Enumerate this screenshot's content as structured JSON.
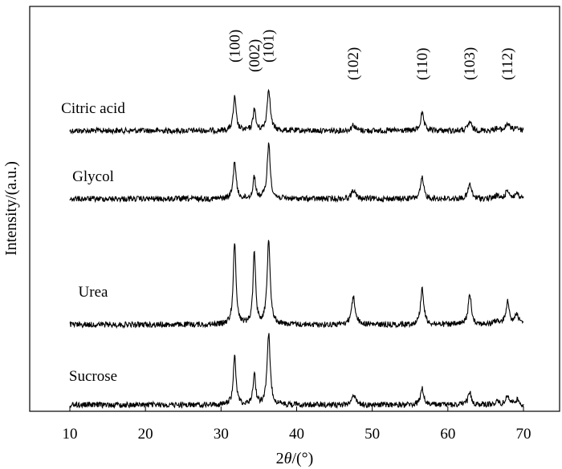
{
  "chart_data": {
    "type": "line",
    "title": "",
    "xlabel": "2θ/(°)",
    "xlabel_parts": {
      "prefix": "2",
      "symbol": "θ",
      "suffix": "/(°)"
    },
    "ylabel": "Intensity/(a.u.)",
    "xlim": [
      10,
      70
    ],
    "xticks": [
      10,
      20,
      30,
      40,
      50,
      60,
      70
    ],
    "xtick_labels": [
      "10",
      "20",
      "30",
      "40",
      "50",
      "60",
      "70"
    ],
    "grid": false,
    "y_ticks_shown": false,
    "series": [
      {
        "name": "Citric acid",
        "peaks": [
          {
            "x": 31.8,
            "height": 0.45
          },
          {
            "x": 34.4,
            "height": 0.3
          },
          {
            "x": 36.3,
            "height": 0.58
          },
          {
            "x": 47.5,
            "height": 0.08
          },
          {
            "x": 56.6,
            "height": 0.23
          },
          {
            "x": 62.9,
            "height": 0.12
          },
          {
            "x": 66.4,
            "height": 0.03
          },
          {
            "x": 67.9,
            "height": 0.1
          },
          {
            "x": 69.1,
            "height": 0.05
          }
        ]
      },
      {
        "name": "Glycol",
        "peaks": [
          {
            "x": 31.8,
            "height": 0.52
          },
          {
            "x": 34.4,
            "height": 0.3
          },
          {
            "x": 36.3,
            "height": 0.75
          },
          {
            "x": 47.5,
            "height": 0.12
          },
          {
            "x": 56.6,
            "height": 0.28
          },
          {
            "x": 62.9,
            "height": 0.2
          },
          {
            "x": 66.4,
            "height": 0.04
          },
          {
            "x": 67.9,
            "height": 0.12
          },
          {
            "x": 69.1,
            "height": 0.07
          }
        ]
      },
      {
        "name": "Urea",
        "peaks": [
          {
            "x": 31.8,
            "height": 0.95
          },
          {
            "x": 34.4,
            "height": 0.86
          },
          {
            "x": 36.3,
            "height": 1.0
          },
          {
            "x": 47.5,
            "height": 0.32
          },
          {
            "x": 56.6,
            "height": 0.43
          },
          {
            "x": 62.9,
            "height": 0.35
          },
          {
            "x": 66.4,
            "height": 0.04
          },
          {
            "x": 67.9,
            "height": 0.26
          },
          {
            "x": 69.1,
            "height": 0.13
          }
        ]
      },
      {
        "name": "Sucrose",
        "peaks": [
          {
            "x": 31.8,
            "height": 0.68
          },
          {
            "x": 34.4,
            "height": 0.45
          },
          {
            "x": 36.3,
            "height": 1.0
          },
          {
            "x": 47.5,
            "height": 0.15
          },
          {
            "x": 56.6,
            "height": 0.23
          },
          {
            "x": 62.9,
            "height": 0.17
          },
          {
            "x": 66.4,
            "height": 0.04
          },
          {
            "x": 67.9,
            "height": 0.13
          },
          {
            "x": 69.1,
            "height": 0.07
          }
        ]
      }
    ],
    "annotations": [
      {
        "text": "(100)",
        "x": 31.8
      },
      {
        "text": "(002)",
        "x": 34.4
      },
      {
        "text": "(101)",
        "x": 36.3
      },
      {
        "text": "(102)",
        "x": 47.5
      },
      {
        "text": "(110)",
        "x": 56.6
      },
      {
        "text": "(103)",
        "x": 62.9
      },
      {
        "text": "(112)",
        "x": 67.9
      }
    ],
    "line_color": "#000000"
  }
}
